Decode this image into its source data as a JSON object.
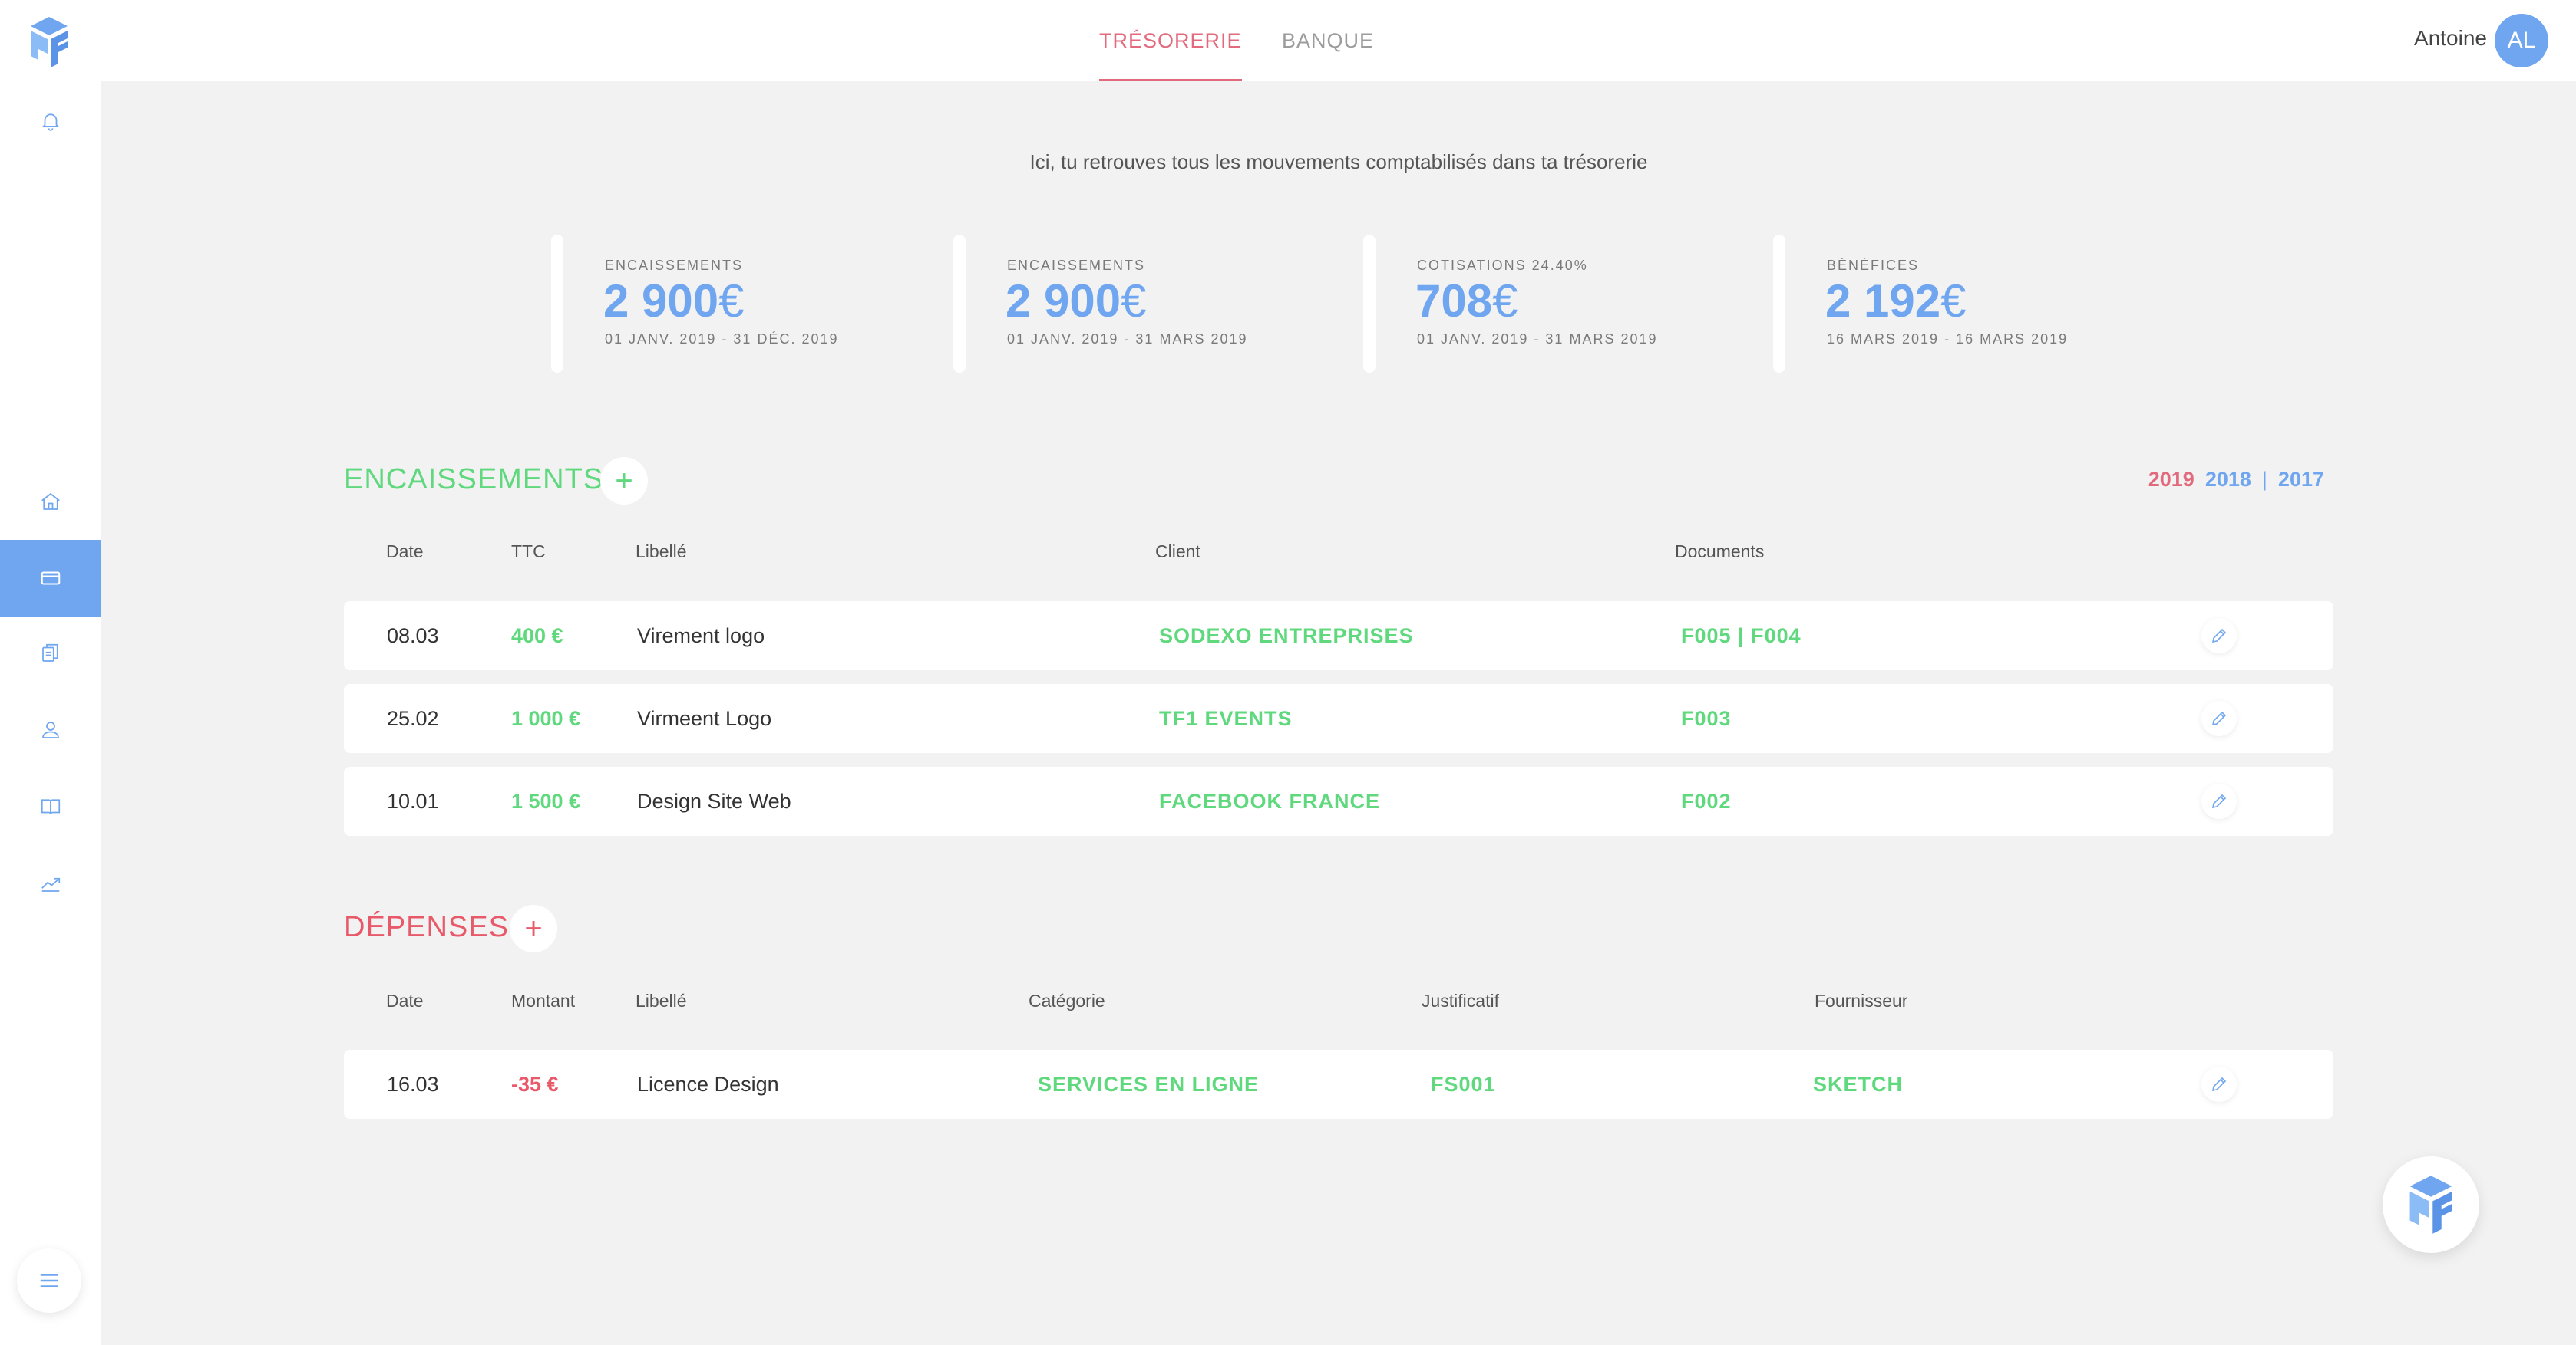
{
  "header": {
    "tabs": [
      {
        "label": "TRÉSORERIE",
        "active": true
      },
      {
        "label": "BANQUE",
        "active": false
      }
    ],
    "user_name": "Antoine",
    "avatar_initials": "AL"
  },
  "sidebar": {
    "icons": [
      "bell-icon",
      "home-icon",
      "card-icon",
      "documents-icon",
      "user-icon",
      "book-icon",
      "chart-icon",
      "menu-icon"
    ],
    "active": "card-icon"
  },
  "intro": "Ici, tu retrouves tous les mouvements comptabilisés dans ta trésorerie",
  "stats": [
    {
      "label": "ENCAISSEMENTS",
      "value": "2 900",
      "currency": "€",
      "period": "01 JANV. 2019 - 31 DÉC. 2019"
    },
    {
      "label": "ENCAISSEMENTS",
      "value": "2 900",
      "currency": "€",
      "period": "01 JANV. 2019 - 31 MARS 2019"
    },
    {
      "label": "COTISATIONS 24.40%",
      "value": "708",
      "currency": "€",
      "period": "01 JANV. 2019 - 31 MARS 2019"
    },
    {
      "label": "BÉNÉFICES",
      "value": "2 192",
      "currency": "€",
      "period": "16 MARS 2019 - 16 MARS 2019"
    }
  ],
  "encaissements": {
    "title": "ENCAISSEMENTS",
    "add_symbol": "+",
    "years": [
      "2019",
      "2018",
      "2017"
    ],
    "year_separator": "|",
    "columns": [
      "Date",
      "TTC",
      "Libellé",
      "Client",
      "Documents"
    ],
    "rows": [
      {
        "date": "08.03",
        "amount": "400 €",
        "label": "Virement logo",
        "client": "SODEXO ENTREPRISES",
        "documents": "F005 | F004"
      },
      {
        "date": "25.02",
        "amount": "1 000 €",
        "label": "Virmeent Logo",
        "client": "TF1 EVENTS",
        "documents": "F003"
      },
      {
        "date": "10.01",
        "amount": "1 500 €",
        "label": "Design Site Web",
        "client": "FACEBOOK FRANCE",
        "documents": "F002"
      }
    ]
  },
  "depenses": {
    "title": "DÉPENSES",
    "add_symbol": "+",
    "columns": [
      "Date",
      "Montant",
      "Libellé",
      "Catégorie",
      "Justificatif",
      "Fournisseur"
    ],
    "rows": [
      {
        "date": "16.03",
        "amount": "-35 €",
        "label": "Licence Design",
        "category": "SERVICES EN LIGNE",
        "receipt": "FS001",
        "supplier": "SKETCH"
      }
    ]
  },
  "colors": {
    "accent_blue": "#6fa6ef",
    "accent_pink": "#e26a7d",
    "green": "#5fd87e",
    "red": "#e85a6a",
    "background": "#f2f2f2"
  }
}
